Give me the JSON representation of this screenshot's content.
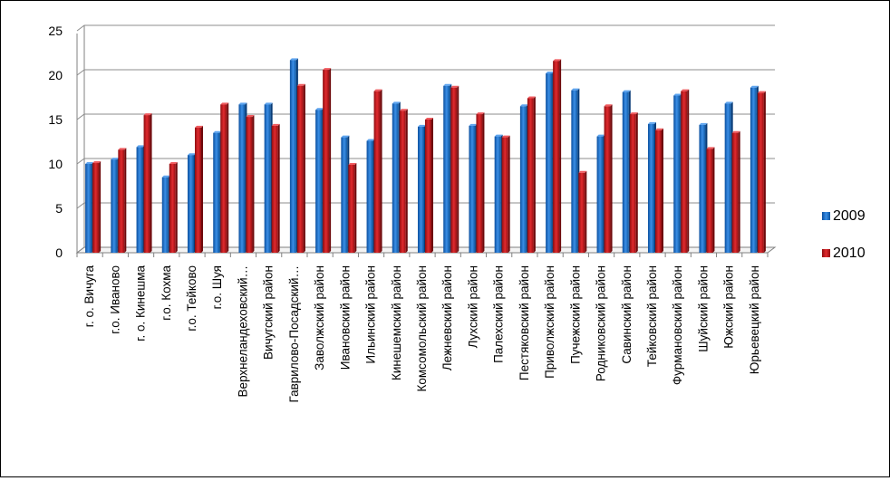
{
  "chart_data": {
    "type": "bar",
    "title": "",
    "xlabel": "",
    "ylabel": "",
    "ylim": [
      0,
      25
    ],
    "yticks": [
      0,
      5,
      10,
      15,
      20,
      25
    ],
    "grid": true,
    "legend_position": "right",
    "categories": [
      "г. о. Вичуга",
      "г.о. Иваново",
      "г. о. Кинешма",
      "г.о. Кохма",
      "г.о. Тейково",
      "г.о. Шуя",
      "Верхнеландеховский…",
      "Вичугский район",
      "Гаврилово-Посадский…",
      "Заволжский район",
      "Ивановский район",
      "Ильинский район",
      "Кинешемский район",
      "Комсомольский район",
      "Лежневский район",
      "Лухский район",
      "Палехский район",
      "Пестяковский район",
      "Приволжский район",
      "Пучежский район",
      "Родниковский район",
      "Савинский район",
      "Тейковский район",
      "Фурмановский район",
      "Шуйский район",
      "Южский район",
      "Юрьевецкий район"
    ],
    "series": [
      {
        "name": "2009",
        "color": "#1f6fc5",
        "values": [
          10.0,
          10.5,
          11.9,
          8.5,
          11.0,
          13.5,
          16.7,
          16.7,
          21.7,
          16.1,
          13.0,
          12.6,
          16.8,
          14.2,
          18.8,
          14.3,
          13.1,
          16.5,
          20.2,
          18.3,
          13.1,
          18.1,
          14.5,
          17.7,
          14.4,
          16.8,
          18.6
        ]
      },
      {
        "name": "2010",
        "color": "#c0141a",
        "values": [
          10.1,
          11.6,
          15.5,
          10.0,
          14.1,
          16.7,
          15.3,
          14.3,
          18.8,
          20.6,
          9.9,
          18.2,
          16.0,
          15.0,
          18.6,
          15.6,
          13.0,
          17.4,
          21.6,
          9.0,
          16.5,
          15.6,
          13.8,
          18.2,
          11.7,
          13.5,
          18.0
        ]
      }
    ]
  }
}
